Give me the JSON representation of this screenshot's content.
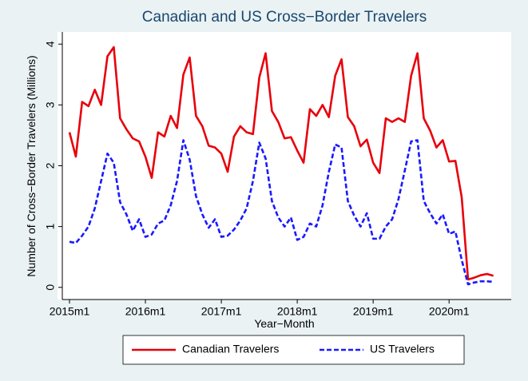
{
  "chart_data": {
    "type": "line",
    "title": "Canadian and US Cross−Border Travelers",
    "x_label": "Year−Month",
    "y_label": "Number of Cross−Border Travelers (Millions)",
    "categories": [
      "2015m1",
      null,
      null,
      null,
      null,
      null,
      null,
      null,
      null,
      null,
      null,
      null,
      "2016m1",
      null,
      null,
      null,
      null,
      null,
      null,
      null,
      null,
      null,
      null,
      null,
      "2017m1",
      null,
      null,
      null,
      null,
      null,
      null,
      null,
      null,
      null,
      null,
      null,
      "2018m1",
      null,
      null,
      null,
      null,
      null,
      null,
      null,
      null,
      null,
      null,
      null,
      "2019m1",
      null,
      null,
      null,
      null,
      null,
      null,
      null,
      null,
      null,
      null,
      null,
      "2020m1",
      null,
      null,
      null,
      null,
      null,
      null,
      null
    ],
    "series": [
      {
        "name": "Canadian Travelers",
        "color": "#e8000b",
        "dash": "solid",
        "values": [
          2.55,
          2.15,
          3.05,
          2.98,
          3.25,
          3.0,
          3.8,
          3.95,
          2.78,
          2.6,
          2.45,
          2.4,
          2.15,
          1.8,
          2.55,
          2.48,
          2.82,
          2.62,
          3.5,
          3.78,
          2.82,
          2.65,
          2.33,
          2.3,
          2.2,
          1.9,
          2.48,
          2.65,
          2.55,
          2.52,
          3.45,
          3.85,
          2.9,
          2.72,
          2.45,
          2.47,
          2.25,
          2.05,
          2.93,
          2.82,
          3.0,
          2.8,
          3.48,
          3.75,
          2.8,
          2.65,
          2.32,
          2.43,
          2.05,
          1.88,
          2.78,
          2.72,
          2.78,
          2.72,
          3.48,
          3.85,
          2.78,
          2.58,
          2.3,
          2.42,
          2.07,
          2.08,
          1.48,
          0.13,
          0.16,
          0.2,
          0.22,
          0.19
        ]
      },
      {
        "name": "US Travelers",
        "color": "#1a1aff",
        "dash": "dash",
        "values": [
          0.75,
          0.73,
          0.85,
          1.0,
          1.3,
          1.75,
          2.2,
          2.05,
          1.4,
          1.2,
          0.93,
          1.12,
          0.83,
          0.87,
          1.05,
          1.1,
          1.35,
          1.75,
          2.42,
          2.1,
          1.5,
          1.2,
          0.98,
          1.12,
          0.83,
          0.85,
          0.95,
          1.1,
          1.3,
          1.75,
          2.38,
          2.12,
          1.42,
          1.15,
          1.0,
          1.15,
          0.78,
          0.83,
          1.05,
          1.0,
          1.35,
          1.9,
          2.35,
          2.3,
          1.42,
          1.18,
          1.0,
          1.22,
          0.8,
          0.8,
          1.0,
          1.12,
          1.45,
          1.92,
          2.4,
          2.42,
          1.42,
          1.22,
          1.05,
          1.2,
          0.88,
          0.92,
          0.45,
          0.05,
          0.08,
          0.1,
          0.1,
          0.09
        ]
      }
    ],
    "ylim": [
      -0.2,
      4.2
    ],
    "yticks": [
      0,
      1,
      2,
      3,
      4
    ],
    "grid": false,
    "legend": "bottom"
  }
}
